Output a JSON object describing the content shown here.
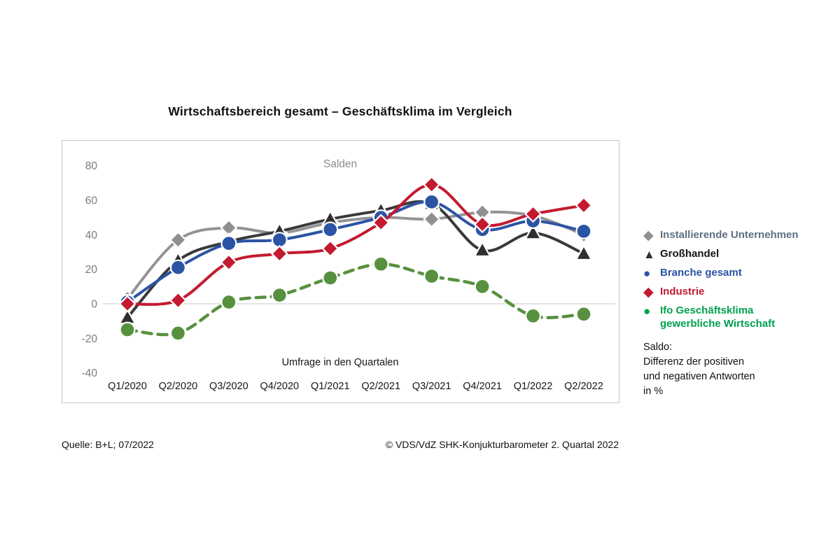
{
  "title": "Wirtschaftsbereich gesamt – Geschäftsklima im Vergleich",
  "legend": {
    "items": [
      {
        "id": "installierende-unternehmen",
        "marker": "diamond",
        "marker_glyph": "◆",
        "marker_color": "#8e9092",
        "label": "Installierende Unternehmen",
        "label_color": "#5d7081"
      },
      {
        "id": "grosshandel",
        "marker": "triangle",
        "marker_glyph": "▲",
        "marker_color": "#2f2f31",
        "label": "Großhandel",
        "label_color": "#141414"
      },
      {
        "id": "branche-gesamt",
        "marker": "circle",
        "marker_glyph": "●",
        "marker_color": "#2c54a5",
        "label": "Branche gesamt",
        "label_color": "#2c54a5"
      },
      {
        "id": "industrie",
        "marker": "diamond",
        "marker_glyph": "◆",
        "marker_color": "#c31a2f",
        "label": "Industrie",
        "label_color": "#c31a2f"
      },
      {
        "id": "ifo-geschaeftsklima",
        "marker": "circle",
        "marker_glyph": "●",
        "marker_color": "#00a14f",
        "label": "Ifo Geschäftsklima\ngewerbliche Wirtschaft",
        "label_color": "#00a14f"
      }
    ]
  },
  "saldo_note": "Saldo:\nDifferenz der positiven\nund negativen Antworten\nin %",
  "footer": {
    "source": "Quelle: B+L; 07/2022",
    "copyright": "© VDS/VdZ SHK-Konjukturbarometer 2. Quartal 2022"
  },
  "chart_data": {
    "type": "line",
    "title": "Wirtschaftsbereich gesamt – Geschäftsklima im Vergleich",
    "inner_label": "Salden",
    "xlabel": "Umfrage in den Quartalen",
    "categories": [
      "Q1/2020",
      "Q2/2020",
      "Q3/2020",
      "Q4/2020",
      "Q1/2021",
      "Q2/2021",
      "Q3/2021",
      "Q4/2021",
      "Q1/2022",
      "Q2/2022"
    ],
    "yticks": [
      80,
      60,
      40,
      20,
      0,
      -20,
      -40
    ],
    "ylim": [
      -48,
      94
    ],
    "grid": "zero-line-only",
    "legend_position": "right",
    "series": [
      {
        "id": "installierende-unternehmen",
        "name": "Installierende Unternehmen",
        "color": "#949494",
        "marker_color": "#8e9092",
        "marker": "diamond",
        "dash": false,
        "values": [
          3,
          37,
          44,
          41,
          47,
          50,
          49,
          53,
          51,
          40
        ]
      },
      {
        "id": "grosshandel",
        "name": "Großhandel",
        "color": "#39393b",
        "marker_color": "#2f2f31",
        "marker": "triangle",
        "dash": false,
        "values": [
          -8,
          25,
          36,
          42,
          49,
          54,
          58,
          31,
          41,
          29
        ]
      },
      {
        "id": "branche-gesamt",
        "name": "Branche gesamt",
        "color": "#2c54a5",
        "marker_color": "#2c54a5",
        "marker": "circle",
        "dash": false,
        "values": [
          1,
          21,
          35,
          37,
          43,
          50,
          59,
          43,
          48,
          42
        ]
      },
      {
        "id": "industrie",
        "name": "Industrie",
        "color": "#c31a2f",
        "marker_color": "#c31a2f",
        "marker": "diamond",
        "dash": false,
        "values": [
          0,
          2,
          24,
          29,
          32,
          47,
          69,
          46,
          52,
          57
        ]
      },
      {
        "id": "ifo-geschaeftsklima",
        "name": "Ifo Geschäftsklima gewerbliche Wirtschaft",
        "color": "#57913f",
        "marker_color": "#57913f",
        "marker": "circle",
        "dash": true,
        "values": [
          -15,
          -17,
          1,
          5,
          15,
          23,
          16,
          10,
          -7,
          -6
        ]
      }
    ],
    "colors": {
      "zero_line": "#d9d9d9",
      "axis_tick_text": "#7b7b7b",
      "inner_label_text": "#8c8c8c",
      "x_tick_text": "#161616",
      "plot_border": "#c6c6c6"
    }
  }
}
